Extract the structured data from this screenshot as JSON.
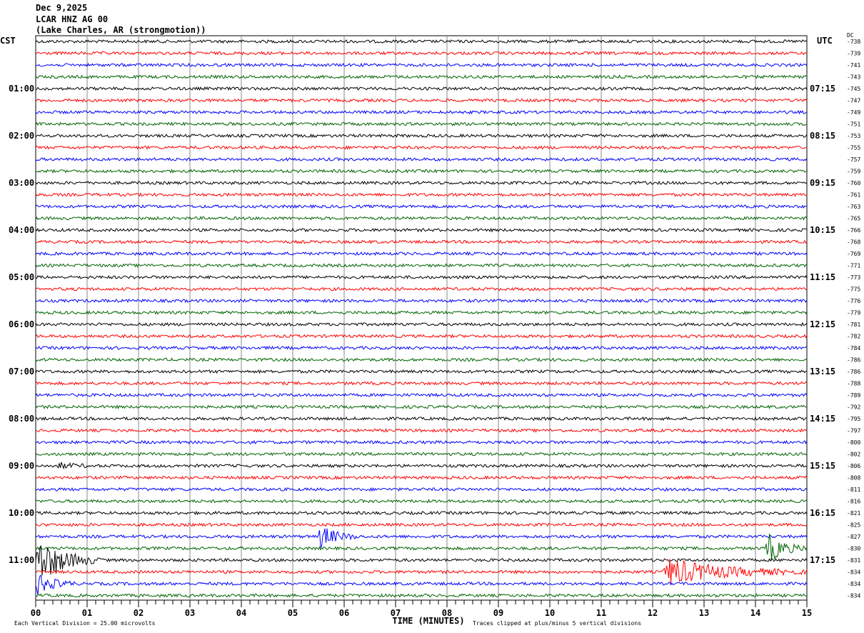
{
  "header": {
    "date": "Dec 9,2025",
    "station": "LCAR HNZ AG 00",
    "location": "(Lake Charles, AR (strongmotion))"
  },
  "chart_data": {
    "type": "line",
    "title": "LCAR HNZ AG 00 helicorder",
    "xlabel": "TIME (MINUTES)",
    "xlim": [
      0,
      15
    ],
    "x_ticks": [
      "00",
      "01",
      "02",
      "03",
      "04",
      "05",
      "06",
      "07",
      "08",
      "09",
      "10",
      "11",
      "12",
      "13",
      "14",
      "15"
    ],
    "left_timezone": "CST",
    "right_timezone": "UTC",
    "left_hour_labels": [
      "01:00",
      "02:00",
      "03:00",
      "04:00",
      "05:00",
      "06:00",
      "07:00",
      "08:00",
      "09:00",
      "10:00",
      "11:00"
    ],
    "right_hour_labels": [
      "07:15",
      "08:15",
      "09:15",
      "10:15",
      "11:15",
      "12:15",
      "13:15",
      "14:15",
      "15:15",
      "16:15",
      "17:15"
    ],
    "dc_header": "DC",
    "dc_offsets": [
      "-738",
      "-739",
      "-741",
      "-743",
      "-745",
      "-747",
      "-749",
      "-751",
      "-753",
      "-755",
      "-757",
      "-759",
      "-760",
      "-761",
      "-763",
      "-765",
      "-766",
      "-768",
      "-769",
      "-771",
      "-773",
      "-775",
      "-776",
      "-779",
      "-781",
      "-782",
      "-784",
      "-786",
      "-786",
      "-788",
      "-789",
      "-792",
      "-795",
      "-797",
      "-800",
      "-802",
      "-806",
      "-808",
      "-811",
      "-816",
      "-821",
      "-825",
      "-827",
      "-830",
      "-831",
      "-834",
      "-834",
      "-834"
    ],
    "trace_colors": [
      "#000000",
      "#ff0000",
      "#0000ff",
      "#006400"
    ],
    "rows": 48,
    "minutes_per_row": 15,
    "events": [
      {
        "row": 36,
        "start_min": 0.4,
        "end_min": 1.1,
        "amplitude_divisions": 0.5
      },
      {
        "row": 42,
        "start_min": 5.5,
        "end_min": 6.3,
        "amplitude_divisions": 2.2
      },
      {
        "row": 43,
        "start_min": 14.2,
        "end_min": 15,
        "amplitude_divisions": 3.0
      },
      {
        "row": 44,
        "start_min": 0,
        "end_min": 1.3,
        "amplitude_divisions": 4.5
      },
      {
        "row": 45,
        "start_min": 12.2,
        "end_min": 15,
        "amplitude_divisions": 2.5
      },
      {
        "row": 46,
        "start_min": 0,
        "end_min": 0.8,
        "amplitude_divisions": 2.0
      }
    ],
    "footer_left": "Each Vertical Division =   25.00 microvolts",
    "footer_right": "Traces clipped at plus/minus 5 vertical divisions"
  }
}
